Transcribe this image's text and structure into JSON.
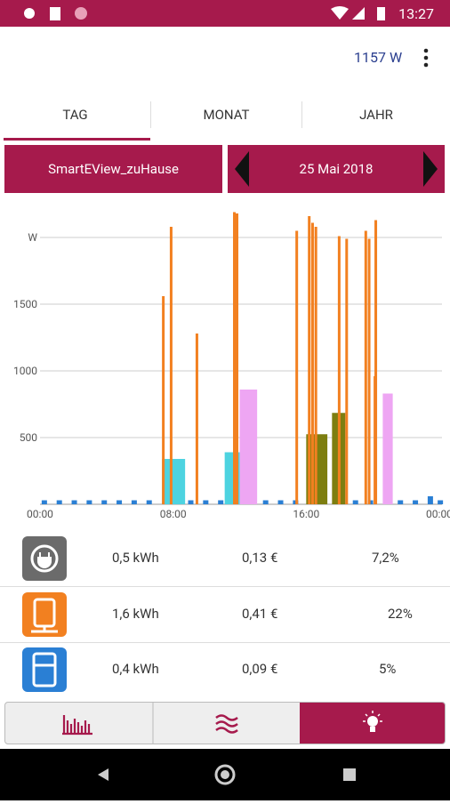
{
  "status_bar": {
    "time": "13:27"
  },
  "header": {
    "power": "1157 W"
  },
  "tabs": [
    "TAG",
    "MONAT",
    "JAHR"
  ],
  "selector": {
    "device": "SmartEView_zuHause",
    "date": "25 Mai 2018"
  },
  "chart_data": {
    "type": "bar",
    "grid": true,
    "xlim": [
      0,
      24
    ],
    "xticks": [
      {
        "value": 0,
        "label": "00:00"
      },
      {
        "value": 8,
        "label": "08:00"
      },
      {
        "value": 16,
        "label": "16:00"
      },
      {
        "value": 24,
        "label": "00:00"
      }
    ],
    "ylim": [
      0,
      2200
    ],
    "yticks": [
      {
        "value": 2000,
        "label": "W"
      },
      1500,
      1000,
      500
    ],
    "series": [
      {
        "color": "#2a7fd4",
        "x": [
          0.1,
          1,
          1.9,
          2.8,
          3.7,
          4.6,
          5.5,
          6.4,
          8.9,
          9.8,
          10.7,
          13.4,
          14.3,
          15.2,
          16.9,
          18.8,
          19.7,
          21.5,
          22.4,
          23.3,
          23.9
        ],
        "values": [
          30,
          30,
          30,
          30,
          30,
          30,
          30,
          30,
          30,
          30,
          30,
          30,
          30,
          30,
          30,
          30,
          30,
          30,
          30,
          60,
          30
        ]
      },
      {
        "color": "#4dd3e0",
        "x": [
          7.33,
          11.1
        ],
        "x_end": [
          8.72,
          12.0
        ],
        "values": [
          340,
          390
        ]
      },
      {
        "color": "#eea6f3",
        "x": [
          12.0,
          20.6
        ],
        "x_end": [
          13.05,
          21.2
        ],
        "values": [
          860,
          830
        ]
      },
      {
        "color": "#7d7e10",
        "x": [
          16.0,
          17.55
        ],
        "x_end": [
          17.27,
          18.35
        ],
        "values": [
          525,
          685
        ]
      },
      {
        "color": "#f28020",
        "x": [
          7.33,
          7.8,
          9.35,
          11.6,
          11.76,
          15.35,
          16.1,
          16.3,
          16.5,
          17.9,
          18.35,
          19.5,
          19.7,
          20.05,
          20.1
        ],
        "values": [
          1560,
          2080,
          1280,
          2190,
          2180,
          2050,
          2160,
          2110,
          2080,
          2010,
          1990,
          2050,
          1990,
          960,
          2130
        ]
      }
    ]
  },
  "table": {
    "rows": [
      [
        "0,5 kWh",
        "0,13 €",
        "7,2%"
      ],
      [
        "1,6 kWh",
        "0,41 €",
        "22%"
      ],
      [
        "0,4 kWh",
        "0,09 €",
        "5%"
      ]
    ]
  }
}
